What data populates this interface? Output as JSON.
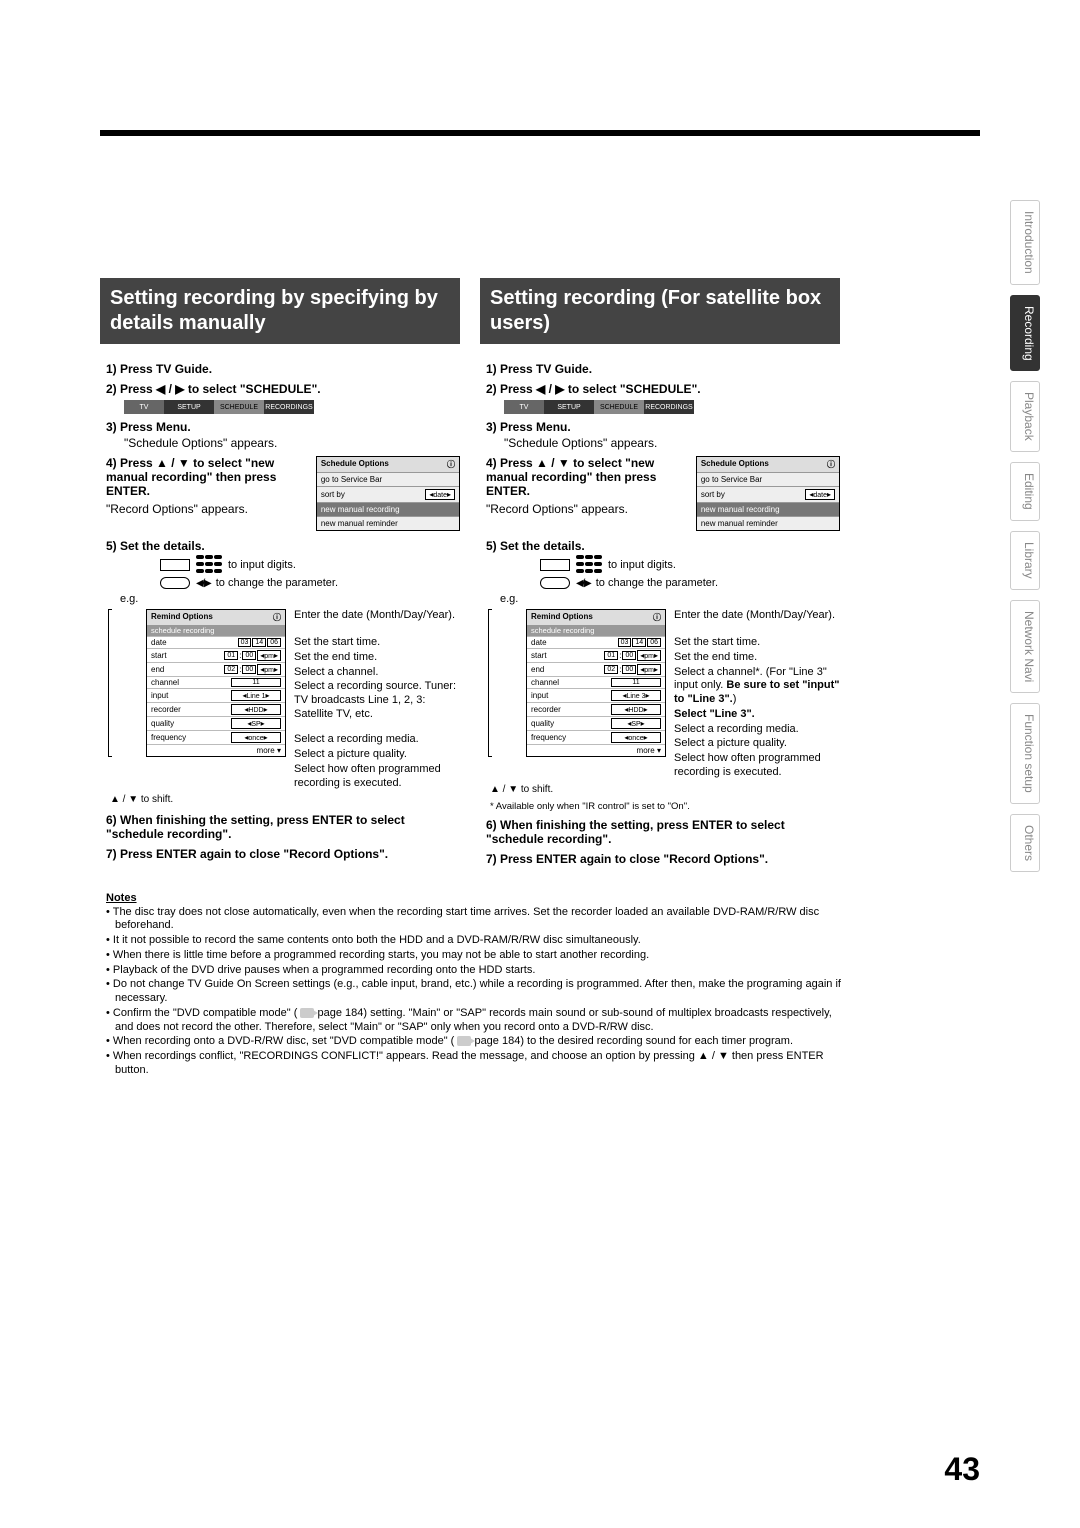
{
  "page_number": "43",
  "sidebar": {
    "tabs": [
      "Introduction",
      "Recording",
      "Playback",
      "Editing",
      "Library",
      "Network Navi",
      "Function setup",
      "Others"
    ],
    "active_index": 1
  },
  "left": {
    "heading": "Setting recording by specifying by details manually",
    "step1": "1) Press TV Guide.",
    "step2_a": "2) Press ",
    "step2_b": " to select \"SCHEDULE\".",
    "nav": [
      "TV",
      "SETUP",
      "SCHEDULE",
      "RECORDINGS"
    ],
    "step3": "3) Press Menu.",
    "step3_sub": "\"Schedule Options\" appears.",
    "step4_a": "4) Press ",
    "step4_b": " to select \"new manual recording\" then press ENTER.",
    "step4_sub": "\"Record Options\" appears.",
    "opts": {
      "title": "Schedule Options",
      "row1": "go to Service Bar",
      "sort_label": "sort by",
      "sort_val": "date",
      "new_rec": "new manual recording",
      "new_rem": "new manual reminder"
    },
    "step5": "5) Set the details.",
    "hint_digits": "to input digits.",
    "hint_param": "to change the parameter.",
    "eg": "e.g.",
    "remind": {
      "title": "Remind Options",
      "sub": "schedule recording",
      "rows": {
        "date": {
          "lbl": "date",
          "v": [
            "03",
            "14",
            "06"
          ]
        },
        "start": {
          "lbl": "start",
          "v": [
            "01",
            ":",
            "00",
            "pm"
          ]
        },
        "end": {
          "lbl": "end",
          "v": [
            "02",
            ":",
            "00",
            "pm"
          ]
        },
        "channel": {
          "lbl": "channel",
          "v": "11"
        },
        "input": {
          "lbl": "input",
          "v": "Line 1"
        },
        "recorder": {
          "lbl": "recorder",
          "v": "HDD"
        },
        "quality": {
          "lbl": "quality",
          "v": "SP"
        },
        "frequency": {
          "lbl": "frequency",
          "v": "once"
        },
        "more": "more ▾"
      }
    },
    "annots": [
      "Enter the date (Month/Day/Year).",
      "Set the start time.",
      "Set the end time.",
      "Select a channel.",
      "Select a recording source. Tuner: TV broadcasts Line 1, 2, 3: Satellite TV, etc.",
      "Select a recording media.",
      "Select a picture quality.",
      "Select how often programmed recording is executed."
    ],
    "shift": "▲ / ▼ to shift.",
    "step6": "6)  When finishing the setting, press ENTER to select \"schedule recording\".",
    "step7": "7)  Press ENTER again to close \"Record Options\"."
  },
  "right": {
    "heading": "Setting recording (For satellite box users)",
    "step1": "1) Press TV Guide.",
    "step2_a": "2) Press ",
    "step2_b": " to select \"SCHEDULE\".",
    "nav": [
      "TV",
      "SETUP",
      "SCHEDULE",
      "RECORDINGS"
    ],
    "step3": "3) Press Menu.",
    "step3_sub": "\"Schedule Options\" appears.",
    "step4_a": "4) Press ",
    "step4_b": " to select \"new manual recording\" then press ENTER.",
    "step4_sub": "\"Record Options\" appears.",
    "opts": {
      "title": "Schedule Options",
      "row1": "go to Service Bar",
      "sort_label": "sort by",
      "sort_val": "date",
      "new_rec": "new manual recording",
      "new_rem": "new manual reminder"
    },
    "step5": "5) Set the details.",
    "hint_digits": "to input digits.",
    "hint_param": "to change the parameter.",
    "eg": "e.g.",
    "remind": {
      "title": "Remind Options",
      "sub": "schedule recording",
      "rows": {
        "date": {
          "lbl": "date",
          "v": [
            "03",
            "14",
            "06"
          ]
        },
        "start": {
          "lbl": "start",
          "v": [
            "01",
            ":",
            "00",
            "pm"
          ]
        },
        "end": {
          "lbl": "end",
          "v": [
            "02",
            ":",
            "00",
            "pm"
          ]
        },
        "channel": {
          "lbl": "channel",
          "v": "11"
        },
        "input": {
          "lbl": "input",
          "v": "Line 3"
        },
        "recorder": {
          "lbl": "recorder",
          "v": "HDD"
        },
        "quality": {
          "lbl": "quality",
          "v": "SP"
        },
        "frequency": {
          "lbl": "frequency",
          "v": "once"
        },
        "more": "more ▾"
      }
    },
    "annots_pre": [
      "Enter the date (Month/Day/Year).",
      "Set the start time.",
      "Set the end time."
    ],
    "annot_channel": "Select a channel*. (For \"Line 3\" input only. ",
    "annot_channel_bold": "Be sure to set \"input\" to \"Line 3\".",
    "annot_channel_close": ")",
    "annot_select_line3": "Select \"Line 3\".",
    "annots_post": [
      "Select a recording media.",
      "Select a picture quality.",
      "Select how often programmed recording is executed."
    ],
    "shift": "▲ / ▼ to shift.",
    "asterisk": "*  Available only when \"IR control\" is set to \"On\".",
    "step6": "6)  When finishing the setting, press ENTER to select \"schedule recording\".",
    "step7": "7)  Press ENTER again to close \"Record Options\"."
  },
  "notes": {
    "title": "Notes",
    "items": [
      "The disc tray does not close automatically, even when the recording start time arrives. Set the recorder loaded an available DVD-RAM/R/RW disc beforehand.",
      "It it not possible to record the same contents onto both the HDD and a DVD-RAM/R/RW disc simultaneously.",
      "When there is little time before a programmed recording starts, you may not be able to start another recording.",
      "Playback of the DVD drive pauses when a programmed recording onto the HDD starts.",
      "Do not change TV Guide On Screen settings (e.g., cable input, brand, etc.) while a recording is programmed. After then, make the programing again if necessary.",
      "Confirm the \"DVD compatible mode\" ( page 184) setting. \"Main\" or \"SAP\" records main sound or sub-sound of multiplex broadcasts respectively, and does not record the other. Therefore, select \"Main\" or \"SAP\" only when you record onto a DVD-R/RW disc.",
      "When recording onto a DVD-R/RW disc, set \"DVD compatible mode\" ( page 184) to the desired recording sound for each timer program.",
      "When recordings conflict, \"RECORDINGS CONFLICT!\" appears. Read the message, and choose an option by pressing ▲ / ▼ then press ENTER button."
    ]
  },
  "symbols": {
    "lr": "◀ / ▶",
    "ud": "▲ / ▼",
    "info": "ⓘ"
  }
}
